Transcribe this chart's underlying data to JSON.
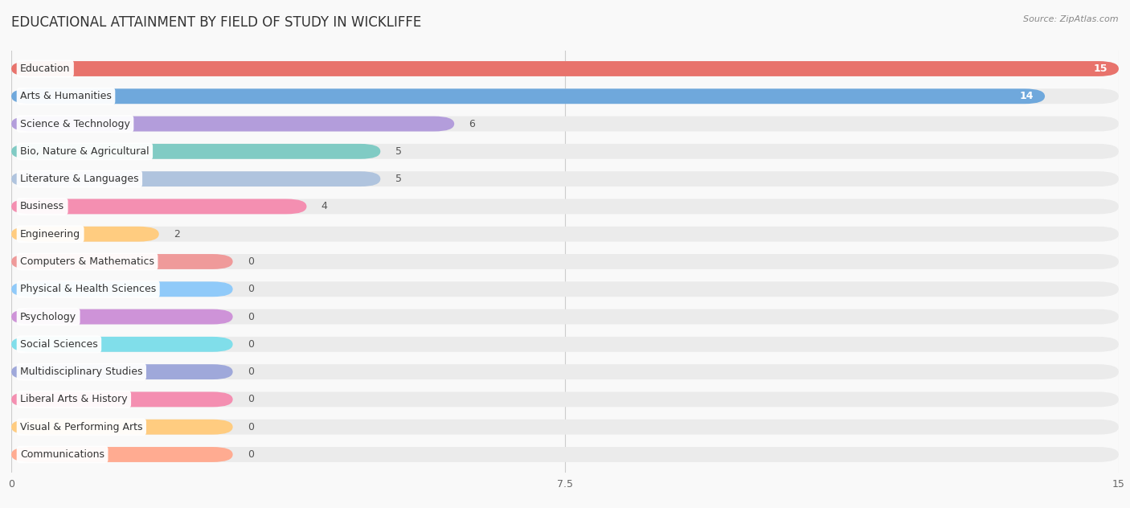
{
  "title": "EDUCATIONAL ATTAINMENT BY FIELD OF STUDY IN WICKLIFFE",
  "source": "Source: ZipAtlas.com",
  "categories": [
    "Education",
    "Arts & Humanities",
    "Science & Technology",
    "Bio, Nature & Agricultural",
    "Literature & Languages",
    "Business",
    "Engineering",
    "Computers & Mathematics",
    "Physical & Health Sciences",
    "Psychology",
    "Social Sciences",
    "Multidisciplinary Studies",
    "Liberal Arts & History",
    "Visual & Performing Arts",
    "Communications"
  ],
  "values": [
    15,
    14,
    6,
    5,
    5,
    4,
    2,
    0,
    0,
    0,
    0,
    0,
    0,
    0,
    0
  ],
  "colors": [
    "#E8736C",
    "#6FA8DC",
    "#B39DDB",
    "#80CBC4",
    "#B0C4DE",
    "#F48FB1",
    "#FFCC80",
    "#EF9A9A",
    "#90CAF9",
    "#CE93D8",
    "#80DEEA",
    "#9FA8DA",
    "#F48FB1",
    "#FFCC80",
    "#FFAB91"
  ],
  "xlim": [
    0,
    15
  ],
  "xticks": [
    0,
    7.5,
    15
  ],
  "background_color": "#f9f9f9",
  "row_bg_color": "#ebebeb",
  "title_fontsize": 12,
  "label_fontsize": 9,
  "value_fontsize": 9
}
